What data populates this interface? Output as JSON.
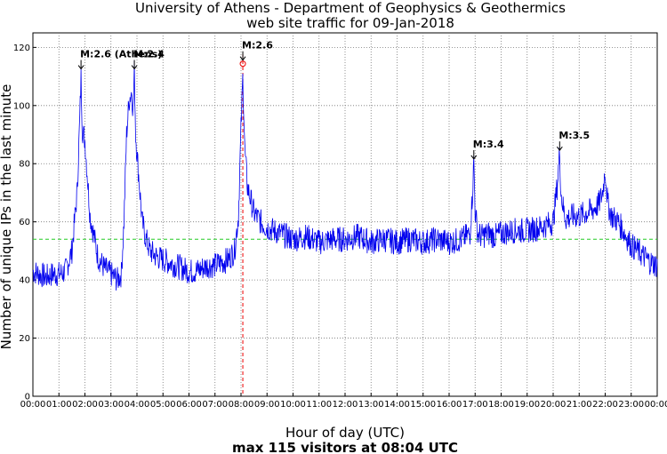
{
  "chart_data": {
    "type": "line",
    "title": "University of Athens - Department of Geophysics & Geothermics",
    "subtitle": "web site traffic for 09-Jan-2018",
    "xlabel": "Hour of day (UTC)",
    "ylabel": "Number of unique IPs in the last minute",
    "footer": "max 115 visitors at 08:04 UTC",
    "xlim_hours": [
      0,
      24
    ],
    "ylim": [
      0,
      125
    ],
    "grid": true,
    "x_ticks": [
      "00:00",
      "01:00",
      "02:00",
      "03:00",
      "04:00",
      "05:00",
      "06:00",
      "07:00",
      "08:00",
      "09:00",
      "10:00",
      "11:00",
      "12:00",
      "13:00",
      "14:00",
      "15:00",
      "16:00",
      "17:00",
      "18:00",
      "19:00",
      "20:00",
      "21:00",
      "22:00",
      "23:00",
      "00:00"
    ],
    "y_ticks": [
      0,
      20,
      40,
      60,
      80,
      100,
      120
    ],
    "series": [
      {
        "values_x_hours": [
          0,
          0.25,
          0.5,
          0.75,
          1.0,
          1.25,
          1.5,
          1.7,
          1.8,
          1.85,
          1.9,
          2.0,
          2.1,
          2.2,
          2.35,
          2.5,
          2.75,
          3.0,
          3.25,
          3.4,
          3.5,
          3.6,
          3.7,
          3.8,
          3.85,
          3.9,
          3.95,
          4.0,
          4.1,
          4.2,
          4.35,
          4.5,
          4.75,
          5.0,
          5.25,
          5.5,
          5.75,
          6.0,
          6.25,
          6.5,
          6.75,
          7.0,
          7.25,
          7.5,
          7.75,
          7.9,
          8.0,
          8.07,
          8.15,
          8.25,
          8.5,
          8.75,
          9.0,
          9.5,
          10.0,
          10.5,
          11.0,
          11.5,
          12.0,
          12.5,
          13.0,
          13.5,
          14.0,
          14.5,
          15.0,
          15.5,
          16.0,
          16.5,
          16.8,
          16.9,
          16.95,
          17.0,
          17.1,
          17.25,
          17.5,
          17.75,
          18.0,
          18.5,
          19.0,
          19.5,
          20.0,
          20.15,
          20.25,
          20.3,
          20.4,
          20.5,
          20.75,
          21.0,
          21.25,
          21.5,
          21.75,
          21.9,
          22.0,
          22.1,
          22.25,
          22.5,
          22.75,
          23.0,
          23.25,
          23.5,
          23.75,
          24.0
        ],
        "values_y": [
          43,
          42,
          41,
          42,
          42,
          43,
          50,
          70,
          95,
          110,
          92,
          88,
          75,
          62,
          55,
          48,
          44,
          42,
          40,
          42,
          60,
          90,
          102,
          105,
          98,
          112,
          90,
          84,
          72,
          60,
          54,
          50,
          48,
          47,
          46,
          45,
          44,
          43,
          43,
          44,
          45,
          45,
          46,
          47,
          50,
          62,
          92,
          110,
          84,
          72,
          63,
          60,
          58,
          56,
          54,
          55,
          53,
          54,
          54,
          55,
          53,
          54,
          53,
          54,
          53,
          54,
          53,
          54,
          56,
          70,
          81,
          64,
          56,
          55,
          56,
          55,
          56,
          57,
          57,
          58,
          60,
          72,
          84,
          70,
          64,
          61,
          62,
          62,
          63,
          64,
          66,
          70,
          78,
          66,
          62,
          60,
          56,
          52,
          50,
          48,
          46,
          45
        ],
        "color": "#0000ee"
      }
    ],
    "reference_line": {
      "y": 54,
      "color": "#22cc22"
    },
    "marker_line": {
      "x_hours": 8.07,
      "color": "#ee0000"
    },
    "annotations": [
      {
        "label": "M:2.6 (Athens)",
        "x_hours": 1.85,
        "y": 112
      },
      {
        "label": "M:2.4",
        "x_hours": 3.9,
        "y": 112
      },
      {
        "label": "M:2.6",
        "x_hours": 8.07,
        "y": 115
      },
      {
        "label": "M:3.4",
        "x_hours": 16.95,
        "y": 81
      },
      {
        "label": "M:3.5",
        "x_hours": 20.25,
        "y": 84
      }
    ]
  }
}
